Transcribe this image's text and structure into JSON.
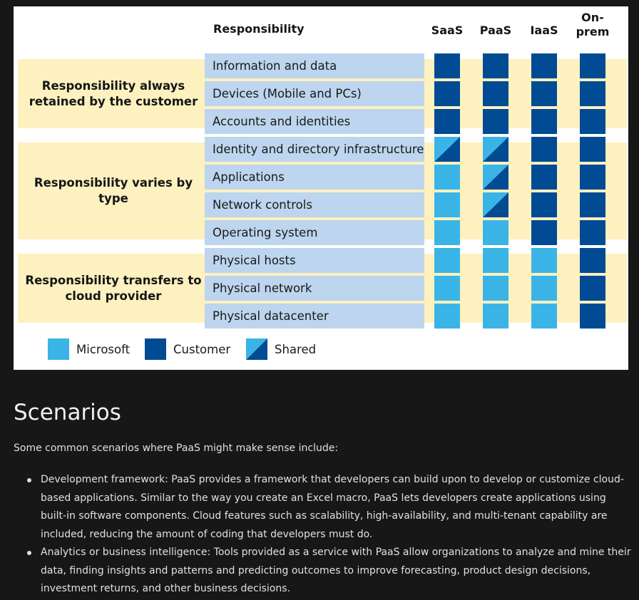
{
  "figure": {
    "header": {
      "responsibility": "Responsibility",
      "columns": [
        "SaaS",
        "PaaS",
        "IaaS",
        "On-\nprem"
      ]
    },
    "bands": [
      {
        "label": "Responsibility always retained by the customer"
      },
      {
        "label": "Responsibility varies by type"
      },
      {
        "label": "Responsibility transfers to cloud provider"
      }
    ],
    "rows": [
      {
        "label": "Information and data",
        "cells": [
          "customer",
          "customer",
          "customer",
          "customer"
        ]
      },
      {
        "label": "Devices (Mobile and PCs)",
        "cells": [
          "customer",
          "customer",
          "customer",
          "customer"
        ]
      },
      {
        "label": "Accounts and identities",
        "cells": [
          "customer",
          "customer",
          "customer",
          "customer"
        ]
      },
      {
        "label": "Identity and directory infrastructure",
        "cells": [
          "shared",
          "shared",
          "customer",
          "customer"
        ]
      },
      {
        "label": "Applications",
        "cells": [
          "microsoft",
          "shared",
          "customer",
          "customer"
        ]
      },
      {
        "label": "Network controls",
        "cells": [
          "microsoft",
          "shared",
          "customer",
          "customer"
        ]
      },
      {
        "label": "Operating system",
        "cells": [
          "microsoft",
          "microsoft",
          "customer",
          "customer"
        ]
      },
      {
        "label": "Physical hosts",
        "cells": [
          "microsoft",
          "microsoft",
          "microsoft",
          "customer"
        ]
      },
      {
        "label": "Physical network",
        "cells": [
          "microsoft",
          "microsoft",
          "microsoft",
          "customer"
        ]
      },
      {
        "label": "Physical datacenter",
        "cells": [
          "microsoft",
          "microsoft",
          "microsoft",
          "customer"
        ]
      }
    ],
    "legend": [
      {
        "key": "microsoft",
        "label": "Microsoft"
      },
      {
        "key": "customer",
        "label": "Customer"
      },
      {
        "key": "shared",
        "label": "Shared"
      }
    ],
    "colors": {
      "microsoft": "#3ab4e6",
      "customer": "#004b93",
      "band": "#fdf1c0",
      "row": "#bdd5ee"
    }
  },
  "scenarios": {
    "heading": "Scenarios",
    "intro": "Some common scenarios where PaaS might make sense include:",
    "items": [
      "Development framework: PaaS provides a framework that developers can build upon to develop or customize cloud-based applications. Similar to the way you create an Excel macro, PaaS lets developers create applications using built-in software components. Cloud features such as scalability, high-availability, and multi-tenant capability are included, reducing the amount of coding that developers must do.",
      "Analytics or business intelligence: Tools provided as a service with PaaS allow organizations to analyze and mine their data, finding insights and patterns and predicting outcomes to improve forecasting, product design decisions, investment returns, and other business decisions."
    ]
  }
}
